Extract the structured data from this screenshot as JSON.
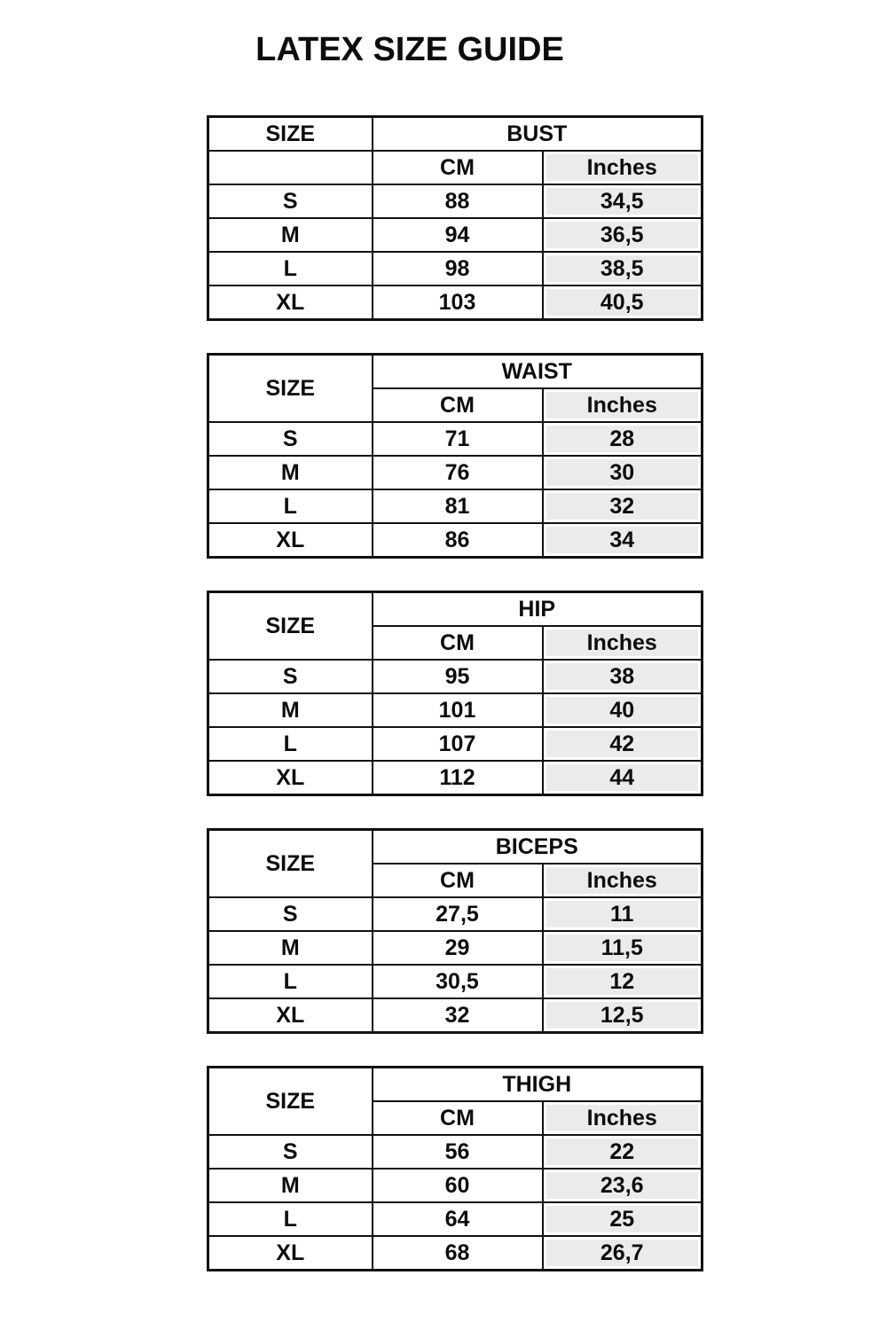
{
  "title": "LATEX SIZE GUIDE",
  "colors": {
    "inches_fill": "#ebebeb",
    "border": "#111111",
    "text": "#0d0d0d"
  },
  "tables": [
    {
      "measure": "BUST",
      "size_label": "SIZE",
      "cm_label": "CM",
      "inches_label": "Inches",
      "rows": [
        {
          "size": "S",
          "cm": "88",
          "inches": "34,5"
        },
        {
          "size": "M",
          "cm": "94",
          "inches": "36,5"
        },
        {
          "size": "L",
          "cm": "98",
          "inches": "38,5"
        },
        {
          "size": "XL",
          "cm": "103",
          "inches": "40,5"
        }
      ]
    },
    {
      "measure": "WAIST",
      "size_label": "SIZE",
      "cm_label": "CM",
      "inches_label": "Inches",
      "rows": [
        {
          "size": "S",
          "cm": "71",
          "inches": "28"
        },
        {
          "size": "M",
          "cm": "76",
          "inches": "30"
        },
        {
          "size": "L",
          "cm": "81",
          "inches": "32"
        },
        {
          "size": "XL",
          "cm": "86",
          "inches": "34"
        }
      ]
    },
    {
      "measure": "HIP",
      "size_label": "SIZE",
      "cm_label": "CM",
      "inches_label": "Inches",
      "rows": [
        {
          "size": "S",
          "cm": "95",
          "inches": "38"
        },
        {
          "size": "M",
          "cm": "101",
          "inches": "40"
        },
        {
          "size": "L",
          "cm": "107",
          "inches": "42"
        },
        {
          "size": "XL",
          "cm": "112",
          "inches": "44"
        }
      ]
    },
    {
      "measure": "BICEPS",
      "size_label": "SIZE",
      "cm_label": "CM",
      "inches_label": "Inches",
      "rows": [
        {
          "size": "S",
          "cm": "27,5",
          "inches": "11"
        },
        {
          "size": "M",
          "cm": "29",
          "inches": "11,5"
        },
        {
          "size": "L",
          "cm": "30,5",
          "inches": "12"
        },
        {
          "size": "XL",
          "cm": "32",
          "inches": "12,5"
        }
      ]
    },
    {
      "measure": "THIGH",
      "size_label": "SIZE",
      "cm_label": "CM",
      "inches_label": "Inches",
      "rows": [
        {
          "size": "S",
          "cm": "56",
          "inches": "22"
        },
        {
          "size": "M",
          "cm": "60",
          "inches": "23,6"
        },
        {
          "size": "L",
          "cm": "64",
          "inches": "25"
        },
        {
          "size": "XL",
          "cm": "68",
          "inches": "26,7"
        }
      ]
    }
  ]
}
